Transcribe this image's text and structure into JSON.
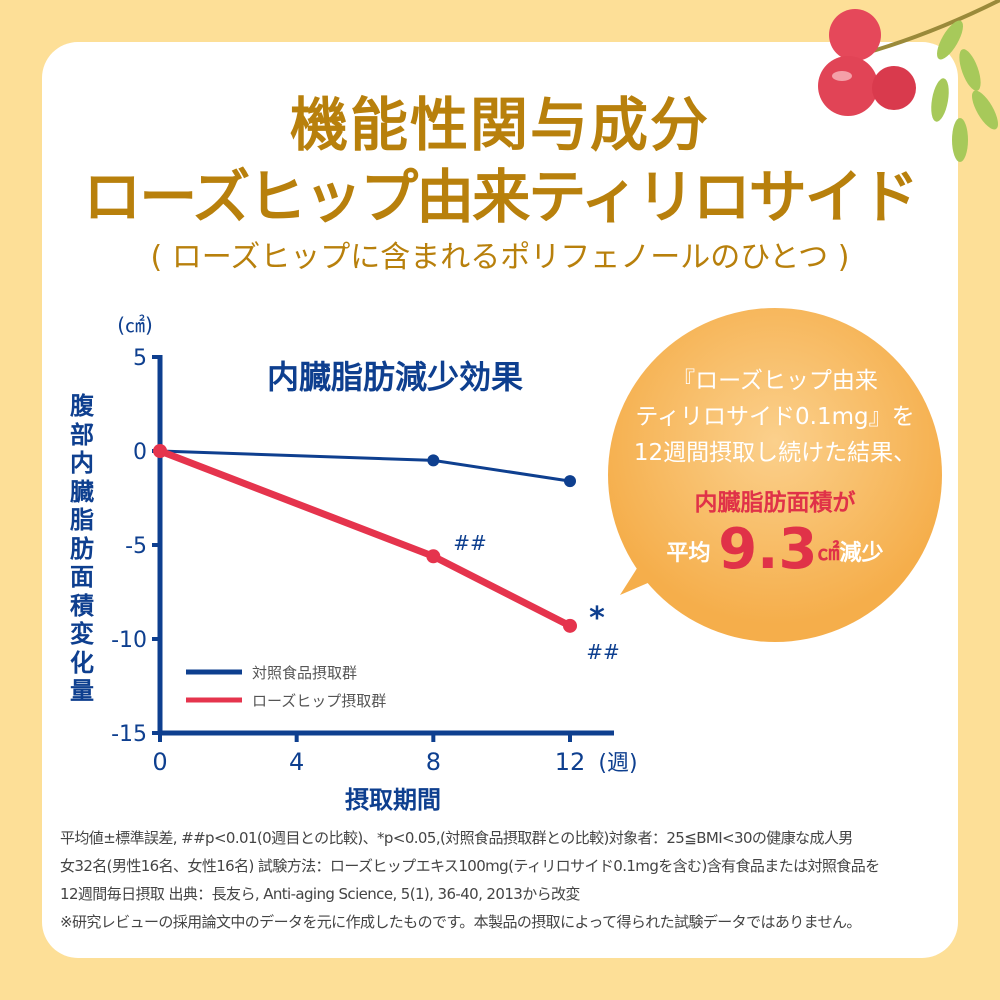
{
  "title_line1": "機能性関与成分",
  "title_line2": "ローズヒップ由来ティリロサイド",
  "subtitle": "( ローズヒップに含まれるポリフェノールのひとつ )",
  "chart_data": {
    "type": "line",
    "title": "内臓脂肪減少効果",
    "ylabel": "腹部内臓脂肪面積変化量",
    "yunit": "(㎠)",
    "xlabel": "摂取期間",
    "xunit": "(週)",
    "x": [
      0,
      8,
      12
    ],
    "xticks": [
      "0",
      "4",
      "8",
      "12"
    ],
    "yticks": [
      "5",
      "0",
      "-5",
      "-10",
      "-15"
    ],
    "xlim": [
      0,
      12
    ],
    "ylim": [
      -15,
      5
    ],
    "legend_position": "bottom-left",
    "series": [
      {
        "name": "対照食品摂取群",
        "values": [
          0,
          -0.5,
          -1.6
        ],
        "color": "#0e3f8f"
      },
      {
        "name": "ローズヒップ摂取群",
        "values": [
          0,
          -5.6,
          -9.3
        ],
        "color": "#e5344d"
      }
    ],
    "annotations": [
      {
        "x": 8,
        "text": "##"
      },
      {
        "x": 12,
        "text": "*"
      },
      {
        "x": 12,
        "text": "##"
      }
    ]
  },
  "callout": {
    "line1": "『ローズヒップ由来",
    "line2": "ティリロサイド0.1mg』を",
    "line3": "12週間摂取し続けた結果、",
    "line4": "内臓脂肪面積が",
    "prefix": "平均",
    "value": "9.3",
    "unit": "㎠",
    "suffix": "減少"
  },
  "notes": [
    "平均値±標準誤差, ##p<0.01(0週目との比較)、*p<0.05,(対照食品摂取群との比較)対象者：25≦BMI<30の健康な成人男",
    "女32名(男性16名、女性16名) 試験方法：ローズヒップエキス100mg(ティリロサイド0.1mgを含む)含有食品または対照食品を",
    "12週間毎日摂取 出典：長友ら, Anti-aging Science, 5(1), 36-40, 2013から改変",
    "※研究レビューの採用論文中のデータを元に作成したものです。本製品の摂取によって得られた試験データではありません。"
  ]
}
